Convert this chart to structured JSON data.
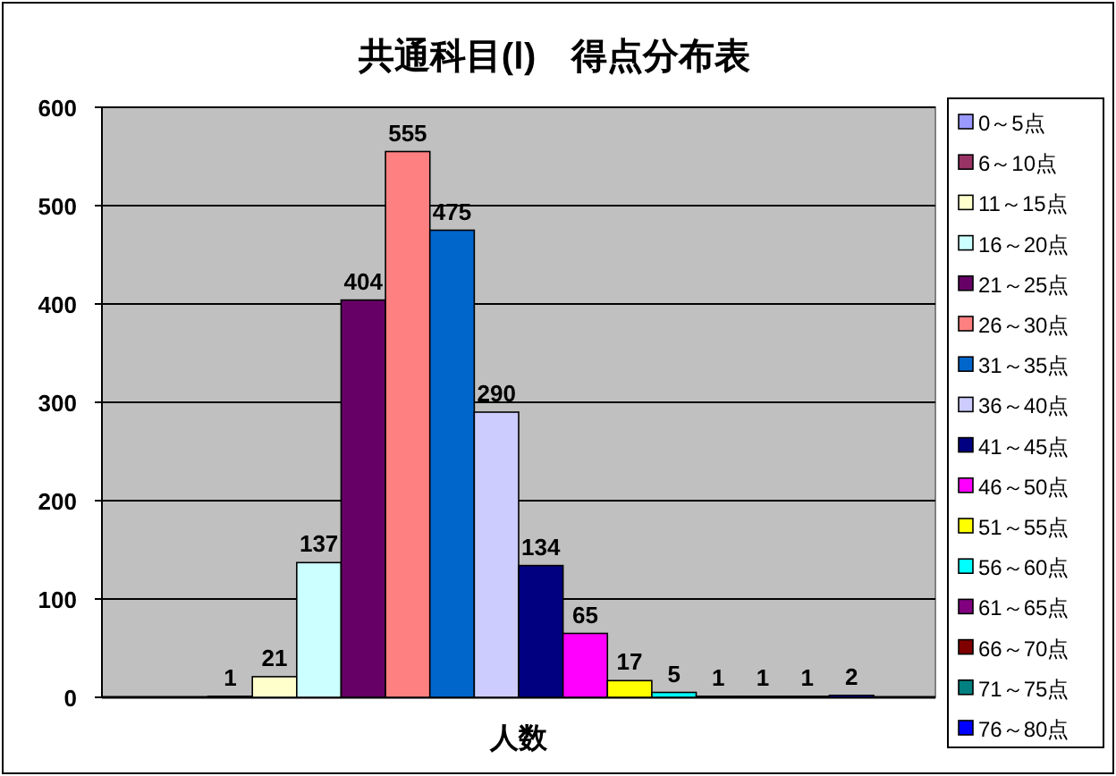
{
  "chart_data": {
    "type": "bar",
    "title": "共通科目(Ⅰ)　得点分布表",
    "categories": [
      "人数"
    ],
    "ylim": [
      0,
      600
    ],
    "yticks": [
      0,
      100,
      200,
      300,
      400,
      500,
      600
    ],
    "grid": "y",
    "legend": "right",
    "series": [
      {
        "name": "0～5点",
        "color": "#9999ff",
        "values": [
          0
        ],
        "value_labels": [
          null
        ]
      },
      {
        "name": "6～10点",
        "color": "#993366",
        "values": [
          1
        ],
        "value_labels": [
          "1"
        ]
      },
      {
        "name": "11～15点",
        "color": "#ffffcc",
        "values": [
          21
        ],
        "value_labels": [
          "21"
        ]
      },
      {
        "name": "16～20点",
        "color": "#ccffff",
        "values": [
          137
        ],
        "value_labels": [
          "137"
        ]
      },
      {
        "name": "21～25点",
        "color": "#660066",
        "values": [
          404
        ],
        "value_labels": [
          "404"
        ]
      },
      {
        "name": "26～30点",
        "color": "#ff8080",
        "values": [
          555
        ],
        "value_labels": [
          "555"
        ]
      },
      {
        "name": "31～35点",
        "color": "#0066cc",
        "values": [
          475
        ],
        "value_labels": [
          "475"
        ]
      },
      {
        "name": "36～40点",
        "color": "#ccccff",
        "values": [
          290
        ],
        "value_labels": [
          "290"
        ]
      },
      {
        "name": "41～45点",
        "color": "#000080",
        "values": [
          134
        ],
        "value_labels": [
          "134"
        ]
      },
      {
        "name": "46～50点",
        "color": "#ff00ff",
        "values": [
          65
        ],
        "value_labels": [
          "65"
        ]
      },
      {
        "name": "51～55点",
        "color": "#ffff00",
        "values": [
          17
        ],
        "value_labels": [
          "17"
        ]
      },
      {
        "name": "56～60点",
        "color": "#00ffff",
        "values": [
          5
        ],
        "value_labels": [
          "5"
        ]
      },
      {
        "name": "61～65点",
        "color": "#800080",
        "values": [
          1
        ],
        "value_labels": [
          "1"
        ]
      },
      {
        "name": "66～70点",
        "color": "#800000",
        "values": [
          1
        ],
        "value_labels": [
          "1"
        ]
      },
      {
        "name": "71～75点",
        "color": "#008080",
        "values": [
          1
        ],
        "value_labels": [
          "1"
        ]
      },
      {
        "name": "76～80点",
        "color": "#0000ff",
        "values": [
          2
        ],
        "value_labels": [
          "2"
        ]
      }
    ]
  }
}
